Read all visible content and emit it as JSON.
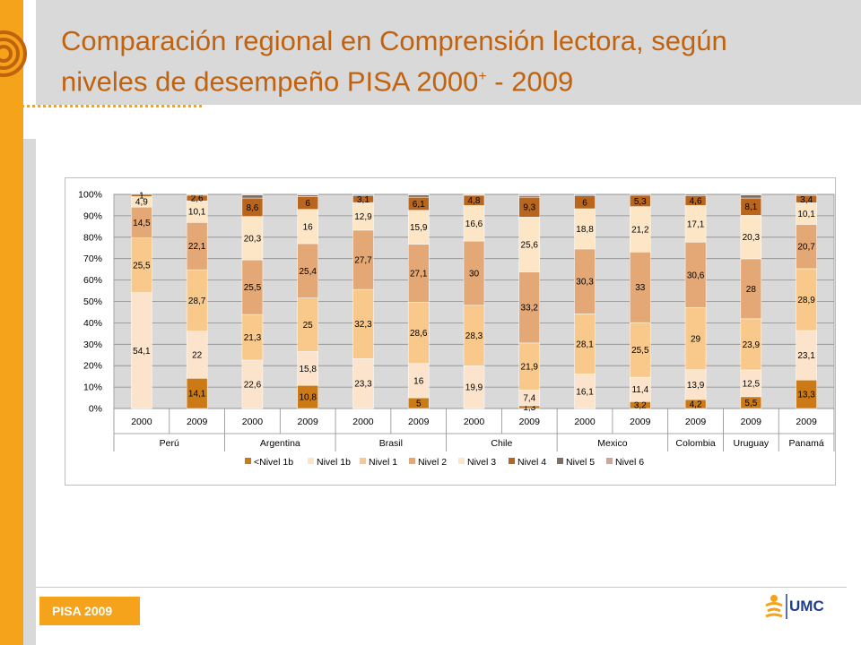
{
  "title_line1": "Comparación regional en Comprensión lectora, según",
  "title_line2": "niveles de desempeño PISA 2000",
  "title_sup": "+",
  "title_tail": " - 2009",
  "footer": {
    "badge": "PISA 2009",
    "logo_text": "UMC"
  },
  "colors": {
    "accent": "#f5a31a",
    "title": "#c0620e",
    "series": [
      "#cc7a16",
      "#fce4cc",
      "#f8c98a",
      "#e3a875",
      "#fde6c6",
      "#b8651d",
      "#7f6e63",
      "#c9a79c"
    ]
  },
  "chart_data": {
    "type": "bar",
    "stacked": "percent",
    "ylim": [
      0,
      100
    ],
    "yticks": [
      "0%",
      "10%",
      "20%",
      "30%",
      "40%",
      "50%",
      "60%",
      "70%",
      "80%",
      "90%",
      "100%"
    ],
    "grid": true,
    "legend": "bottom",
    "categories": [
      "2000",
      "2009",
      "2000",
      "2009",
      "2000",
      "2009",
      "2000",
      "2009",
      "2000",
      "2009",
      "2009",
      "2009",
      "2009"
    ],
    "groups": [
      {
        "label": "Perú",
        "span": 2
      },
      {
        "label": "Argentina",
        "span": 2
      },
      {
        "label": "Brasil",
        "span": 2
      },
      {
        "label": "Chile",
        "span": 2
      },
      {
        "label": "Mexico",
        "span": 2
      },
      {
        "label": "Colombia",
        "span": 1
      },
      {
        "label": "Uruguay",
        "span": 1
      },
      {
        "label": "Panamá",
        "span": 1
      }
    ],
    "series": [
      {
        "name": "<Nivel 1b",
        "values": [
          0,
          14.1,
          0,
          10.8,
          0,
          5,
          0,
          1.3,
          0,
          3.2,
          4.2,
          5.5,
          13.3
        ],
        "labels": [
          "",
          "14,1",
          "",
          "10,8",
          "",
          "5",
          "",
          "1,3",
          "",
          "3,2",
          "4,2",
          "5,5",
          "13,3"
        ]
      },
      {
        "name": "Nivel 1b",
        "values": [
          54.1,
          22,
          22.6,
          15.8,
          23.3,
          16,
          19.9,
          7.4,
          16.1,
          11.4,
          13.9,
          12.5,
          23.1
        ],
        "labels": [
          "54,1",
          "22",
          "22,6",
          "15,8",
          "23,3",
          "16",
          "19,9",
          "7,4",
          "16,1",
          "11,4",
          "13,9",
          "12,5",
          "23,1"
        ]
      },
      {
        "name": "Nivel 1",
        "values": [
          25.5,
          28.7,
          21.3,
          25,
          32.3,
          28.6,
          28.3,
          21.9,
          28.1,
          25.5,
          29,
          23.9,
          28.9
        ],
        "labels": [
          "25,5",
          "28,7",
          "21,3",
          "25",
          "32,3",
          "28,6",
          "28,3",
          "21,9",
          "28,1",
          "25,5",
          "29",
          "23,9",
          "28,9"
        ]
      },
      {
        "name": "Nivel 2",
        "values": [
          14.5,
          22.1,
          25.5,
          25.4,
          27.7,
          27.1,
          30,
          33.2,
          30.3,
          33,
          30.6,
          28,
          20.7
        ],
        "labels": [
          "14,5",
          "22,1",
          "25,5",
          "25,4",
          "27,7",
          "27,1",
          "30",
          "33,2",
          "30,3",
          "33",
          "30,6",
          "28",
          "20,7"
        ]
      },
      {
        "name": "Nivel 3",
        "values": [
          4.9,
          10.1,
          20.3,
          16,
          12.9,
          15.9,
          16.6,
          25.6,
          18.8,
          21.2,
          17.1,
          20.3,
          10.1
        ],
        "labels": [
          "4,9",
          "10,1",
          "20,3",
          "16",
          "12,9",
          "15,9",
          "16,6",
          "25,6",
          "18,8",
          "21,2",
          "17,1",
          "20,3",
          "10,1"
        ]
      },
      {
        "name": "Nivel 4",
        "values": [
          1,
          2.6,
          8.6,
          6,
          3.1,
          6.1,
          4.8,
          9.3,
          6,
          5.3,
          4.6,
          8.1,
          3.4
        ],
        "labels": [
          "1",
          "2,6",
          "8,6",
          "6",
          "3,1",
          "6,1",
          "4,8",
          "9,3",
          "6",
          "5,3",
          "4,6",
          "8,1",
          "3,4"
        ]
      },
      {
        "name": "Nivel 5",
        "values": [
          0,
          0.4,
          1.5,
          0.8,
          0.6,
          1,
          0.3,
          0.6,
          0.6,
          0.4,
          0.6,
          1.4,
          0.5
        ],
        "labels": [
          "",
          "",
          "",
          "",
          "",
          "",
          "",
          "",
          "",
          "",
          "",
          "",
          ""
        ]
      },
      {
        "name": "Nivel 6",
        "values": [
          0,
          0.1,
          0.2,
          0.2,
          0.1,
          0.3,
          0.1,
          0.7,
          0.1,
          0,
          0,
          0.3,
          0
        ],
        "labels": [
          "",
          "",
          "",
          "",
          "",
          "",
          "",
          "",
          "",
          "",
          "",
          "",
          ""
        ]
      }
    ]
  }
}
